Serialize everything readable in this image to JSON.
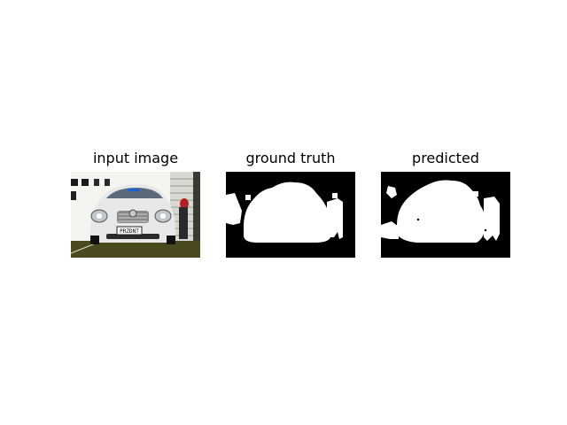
{
  "panels": [
    {
      "title": "input image"
    },
    {
      "title": "ground truth"
    },
    {
      "title": "predicted"
    }
  ],
  "input_image": {
    "license_plate_text": "PRZDNT",
    "subject": "silver car front view in garage"
  },
  "colors": {
    "mask_foreground": "#ffffff",
    "mask_background": "#000000"
  }
}
